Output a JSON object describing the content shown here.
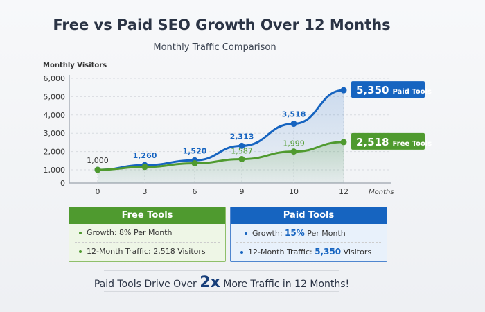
{
  "chart_data": {
    "type": "line",
    "title": "Free vs Paid SEO Growth Over 12 Months",
    "subtitle": "Monthly Traffic Comparison",
    "ylabel": "Monthly Visitors",
    "xlabel": "Months",
    "categories": [
      "0",
      "3",
      "6",
      "9",
      "10",
      "12"
    ],
    "yticks": [
      "0",
      "1,000",
      "2,000",
      "3,000",
      "4,000",
      "5,000",
      "6,000"
    ],
    "ylim": [
      0,
      6000
    ],
    "grid": true,
    "series": [
      {
        "name": "Paid Tools",
        "color": "#1664c0",
        "values": [
          1000,
          1260,
          1520,
          2313,
          3518,
          5350
        ],
        "labels": [
          "1,000",
          "1,260",
          "1,520",
          "2,313",
          "3,518",
          ""
        ]
      },
      {
        "name": "Free Tools",
        "color": "#4f9a2f",
        "values": [
          1000,
          1160,
          1360,
          1587,
          1999,
          2518
        ],
        "labels": [
          "",
          "",
          "",
          "1,587",
          "1,999",
          ""
        ]
      }
    ],
    "end_labels": [
      {
        "value": "5,350",
        "name": "Paid Tools",
        "color": "#1664c0"
      },
      {
        "value": "2,518",
        "name": "Free Tools",
        "color": "#4f9a2f"
      }
    ]
  },
  "free_box": {
    "title": "Free Tools",
    "growth_label": "Growth:",
    "growth_value": "8%",
    "growth_unit": "Per Month",
    "traffic_label": "12-Month Traffic:",
    "traffic_value": "2,518",
    "traffic_unit": "Visitors"
  },
  "paid_box": {
    "title": "Paid Tools",
    "growth_label": "Growth:",
    "growth_value": "15%",
    "growth_unit": "Per Month",
    "traffic_label": "12-Month Traffic:",
    "traffic_value": "5,350",
    "traffic_unit": "Visitors"
  },
  "footer": {
    "pre": "Paid Tools Drive Over",
    "big": "2x",
    "post": "More Traffic in 12 Months!"
  }
}
